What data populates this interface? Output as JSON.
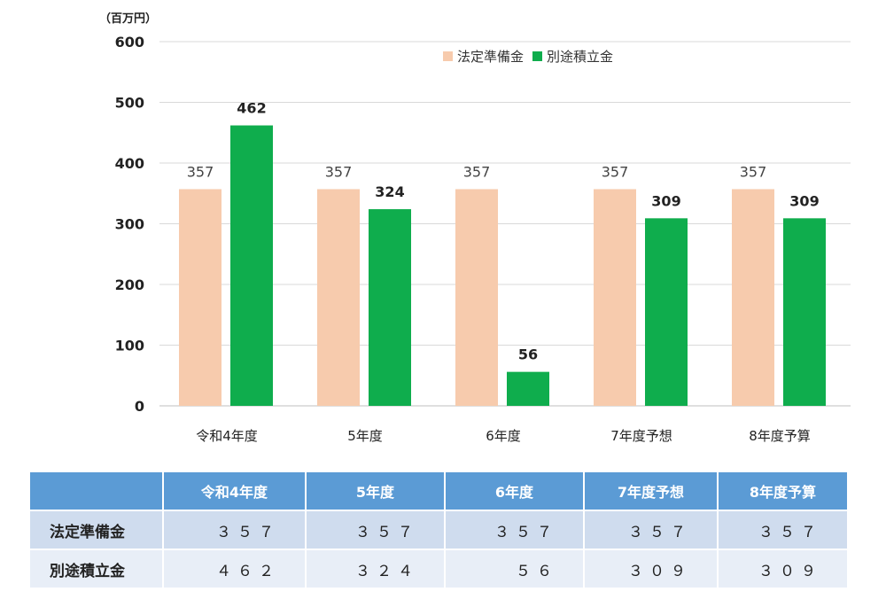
{
  "chart_data": {
    "type": "bar",
    "unit_label": "（百万円）",
    "categories": [
      "令和4年度",
      "5年度",
      "6年度",
      "7年度予想",
      "8年度予算"
    ],
    "series": [
      {
        "name": "法定準備金",
        "values": [
          357,
          357,
          357,
          357,
          357
        ],
        "color": "#f7cbad"
      },
      {
        "name": "別途積立金",
        "values": [
          462,
          324,
          56,
          309,
          309
        ],
        "color": "#0fad4d"
      }
    ],
    "ylim": [
      0,
      600
    ],
    "yticks": [
      0,
      100,
      200,
      300,
      400,
      500,
      600
    ],
    "grid": true,
    "legend_position": "top-right"
  },
  "table": {
    "columns": [
      "令和4年度",
      "5年度",
      "6年度",
      "7年度予想",
      "8年度予算"
    ],
    "rows": [
      {
        "label": "法定準備金",
        "cells": [
          "３５７",
          "３５７",
          "３５７",
          "３５７",
          "３５７"
        ]
      },
      {
        "label": "別途積立金",
        "cells": [
          "４６２",
          "３２４",
          "５６",
          "３０９",
          "３０９"
        ]
      }
    ]
  }
}
